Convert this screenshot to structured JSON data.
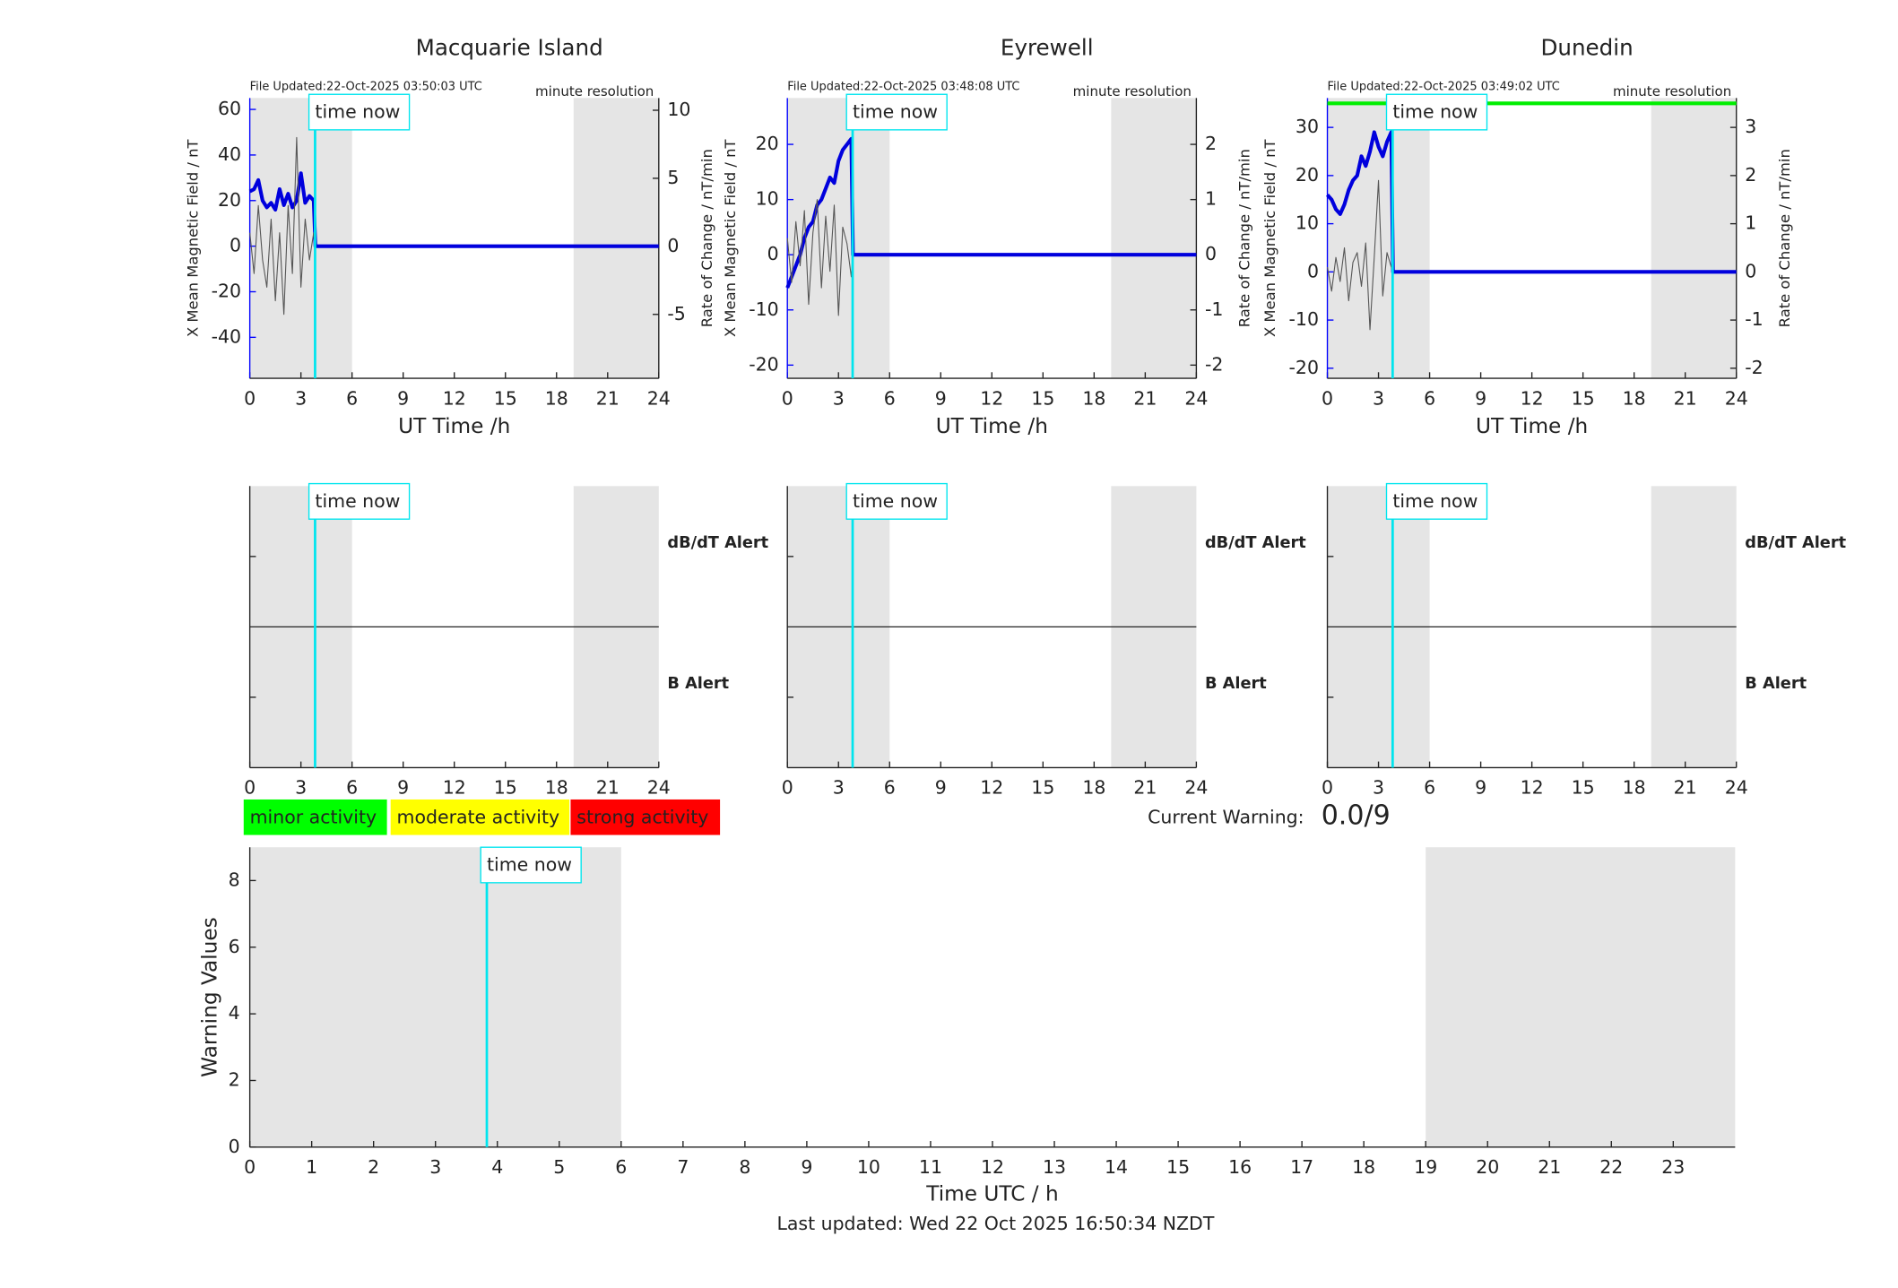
{
  "chart_data": [
    {
      "type": "line",
      "title": "Macquarie Island",
      "file_updated": "File Updated:22-Oct-2025 03:50:03 UTC",
      "resolution": "minute resolution",
      "xlabel": "UT Time /h",
      "ylabel": "X Mean Magnetic Field / nT",
      "y2label": "Rate of Change / nT/min",
      "xlim": [
        0,
        24
      ],
      "xticks": [
        0,
        3,
        6,
        9,
        12,
        15,
        18,
        21,
        24
      ],
      "ylim": [
        -58,
        65
      ],
      "yticks": [
        -40,
        -20,
        0,
        20,
        40,
        60
      ],
      "ycolor": "#0000ff",
      "y2lim": [
        -9.7,
        10.9
      ],
      "y2ticks": [
        -5,
        0,
        5,
        10
      ],
      "shaded": [
        [
          0,
          6
        ],
        [
          19,
          24
        ]
      ],
      "shade_color": "#e5e5e5",
      "time_now": 3.83,
      "time_now_label": "time now",
      "time_now_color": "#00e5ee",
      "series": [
        {
          "color": "#0000dd",
          "x": [
            0,
            0.25,
            0.5,
            0.75,
            1,
            1.25,
            1.5,
            1.75,
            2,
            2.25,
            2.5,
            2.75,
            3,
            3.25,
            3.5,
            3.75,
            3.85,
            24
          ],
          "values": [
            24,
            25,
            29,
            20,
            17,
            19,
            16,
            25,
            18,
            23,
            17,
            20,
            32,
            19,
            22,
            20,
            0,
            0
          ]
        },
        {
          "color": "#555555",
          "axis": "y2",
          "x": [
            0,
            0.25,
            0.5,
            0.75,
            1,
            1.25,
            1.5,
            1.75,
            2,
            2.25,
            2.5,
            2.75,
            3,
            3.25,
            3.5,
            3.75,
            3.85
          ],
          "values": [
            1,
            -2,
            3,
            -1,
            -3,
            2,
            -4,
            1,
            -5,
            3,
            -2,
            8,
            -3,
            2,
            -1,
            1,
            0
          ]
        }
      ]
    },
    {
      "type": "line",
      "title": "Eyrewell",
      "file_updated": "File Updated:22-Oct-2025 03:48:08 UTC",
      "resolution": "minute resolution",
      "xlabel": "UT Time /h",
      "ylabel": "X Mean Magnetic Field / nT",
      "y2label": "Rate of Change / nT/min",
      "xlim": [
        0,
        24
      ],
      "xticks": [
        0,
        3,
        6,
        9,
        12,
        15,
        18,
        21,
        24
      ],
      "ylim": [
        -22.4,
        28.4
      ],
      "yticks": [
        -20,
        -10,
        0,
        10,
        20
      ],
      "ycolor": "#0000ff",
      "y2lim": [
        -2.24,
        2.84
      ],
      "y2ticks": [
        -2,
        -1,
        0,
        1,
        2
      ],
      "shaded": [
        [
          0,
          6
        ],
        [
          19,
          24
        ]
      ],
      "shade_color": "#e5e5e5",
      "time_now": 3.83,
      "time_now_label": "time now",
      "time_now_color": "#00e5ee",
      "series": [
        {
          "color": "#0000dd",
          "x": [
            0,
            0.25,
            0.5,
            0.75,
            1,
            1.25,
            1.5,
            1.75,
            2,
            2.25,
            2.5,
            2.75,
            3,
            3.25,
            3.5,
            3.75,
            3.85,
            24
          ],
          "values": [
            -6,
            -4,
            -2,
            0,
            3,
            5,
            6,
            9,
            10,
            12,
            14,
            13,
            17,
            19,
            20,
            21,
            0,
            0
          ]
        },
        {
          "color": "#555555",
          "axis": "y2",
          "x": [
            0,
            0.25,
            0.5,
            0.75,
            1,
            1.25,
            1.5,
            1.75,
            2,
            2.25,
            2.5,
            2.75,
            3,
            3.25,
            3.5,
            3.75,
            3.85
          ],
          "values": [
            0.3,
            -0.5,
            0.6,
            -0.2,
            0.8,
            -0.9,
            0.4,
            1.0,
            -0.6,
            0.7,
            -0.3,
            0.9,
            -1.1,
            0.5,
            0.2,
            -0.4,
            0
          ]
        }
      ]
    },
    {
      "type": "line",
      "title": "Dunedin",
      "file_updated": "File Updated:22-Oct-2025 03:49:02 UTC",
      "resolution": "minute resolution",
      "xlabel": "UT Time /h",
      "ylabel": "X Mean Magnetic Field / nT",
      "y2label": "Rate of Change / nT/min",
      "xlim": [
        0,
        24
      ],
      "xticks": [
        0,
        3,
        6,
        9,
        12,
        15,
        18,
        21,
        24
      ],
      "ylim": [
        -22.1,
        36.1
      ],
      "yticks": [
        -20,
        -10,
        0,
        10,
        20,
        30
      ],
      "ycolor": "#0000ff",
      "y2lim": [
        -2.21,
        3.61
      ],
      "y2ticks": [
        -2,
        -1,
        0,
        1,
        2,
        3
      ],
      "shaded": [
        [
          0,
          6
        ],
        [
          19,
          24
        ]
      ],
      "shade_color": "#e5e5e5",
      "time_now": 3.83,
      "time_now_label": "time now",
      "time_now_color": "#00e5ee",
      "series": [
        {
          "color": "#00ee00",
          "x": [
            0,
            24
          ],
          "values": [
            35,
            35
          ]
        },
        {
          "color": "#0000dd",
          "x": [
            0,
            0.25,
            0.5,
            0.75,
            1,
            1.25,
            1.5,
            1.75,
            2,
            2.25,
            2.5,
            2.75,
            3,
            3.25,
            3.5,
            3.75,
            3.85,
            24
          ],
          "values": [
            16,
            15,
            13,
            12,
            14,
            17,
            19,
            20,
            24,
            22,
            25,
            29,
            26,
            24,
            27,
            29,
            0,
            0
          ]
        },
        {
          "color": "#555555",
          "axis": "y2",
          "x": [
            0,
            0.25,
            0.5,
            0.75,
            1,
            1.25,
            1.5,
            1.75,
            2,
            2.25,
            2.5,
            2.75,
            3,
            3.25,
            3.5,
            3.75,
            3.85
          ],
          "values": [
            0.1,
            -0.4,
            0.3,
            -0.2,
            0.5,
            -0.6,
            0.2,
            0.4,
            -0.3,
            0.6,
            -1.2,
            0.3,
            1.9,
            -0.5,
            0.4,
            0.1,
            0
          ]
        }
      ]
    },
    {
      "type": "alert",
      "dbdt_label": "dB/dT Alert",
      "b_label": "B Alert",
      "b_color": "#0000ff",
      "xlim": [
        0,
        24
      ],
      "xticks": [
        0,
        3,
        6,
        9,
        12,
        15,
        18,
        21,
        24
      ],
      "shaded": [
        [
          0,
          6
        ],
        [
          19,
          24
        ]
      ],
      "shade_color": "#e5e5e5",
      "time_now": 3.83,
      "time_now_label": "time now",
      "time_now_color": "#00e5ee"
    },
    {
      "type": "alert",
      "dbdt_label": "dB/dT Alert",
      "b_label": "B Alert",
      "b_color": "#0000ff",
      "xlim": [
        0,
        24
      ],
      "xticks": [
        0,
        3,
        6,
        9,
        12,
        15,
        18,
        21,
        24
      ],
      "shaded": [
        [
          0,
          6
        ],
        [
          19,
          24
        ]
      ],
      "shade_color": "#e5e5e5",
      "time_now": 3.83,
      "time_now_label": "time now",
      "time_now_color": "#00e5ee"
    },
    {
      "type": "alert",
      "dbdt_label": "dB/dT Alert",
      "b_label": "B Alert",
      "b_color": "#0000ff",
      "xlim": [
        0,
        24
      ],
      "xticks": [
        0,
        3,
        6,
        9,
        12,
        15,
        18,
        21,
        24
      ],
      "shaded": [
        [
          0,
          6
        ],
        [
          19,
          24
        ]
      ],
      "shade_color": "#e5e5e5",
      "time_now": 3.83,
      "time_now_label": "time now",
      "time_now_color": "#00e5ee"
    },
    {
      "type": "warning",
      "xlabel": "Time UTC / h",
      "ylabel": "Warning Values",
      "xlim": [
        0,
        24
      ],
      "xticks": [
        0,
        1,
        2,
        3,
        4,
        5,
        6,
        7,
        8,
        9,
        10,
        11,
        12,
        13,
        14,
        15,
        16,
        17,
        18,
        19,
        20,
        21,
        22,
        23
      ],
      "ylim": [
        0,
        9
      ],
      "yticks": [
        0,
        2,
        4,
        6,
        8
      ],
      "shaded": [
        [
          0,
          6
        ],
        [
          19,
          24
        ]
      ],
      "shade_color": "#e5e5e5",
      "time_now": 3.83,
      "time_now_label": "time now",
      "time_now_color": "#00e5ee",
      "activity_levels": [
        {
          "label": "minor activity",
          "color": "#00ff00"
        },
        {
          "label": "moderate activity",
          "color": "#ffff00"
        },
        {
          "label": "strong activity",
          "color": "#ff0000"
        }
      ],
      "current_warning_label": "Current Warning:",
      "current_warning": "0.0/9",
      "footer": "Last updated: Wed 22 Oct 2025 16:50:34 NZDT"
    }
  ]
}
